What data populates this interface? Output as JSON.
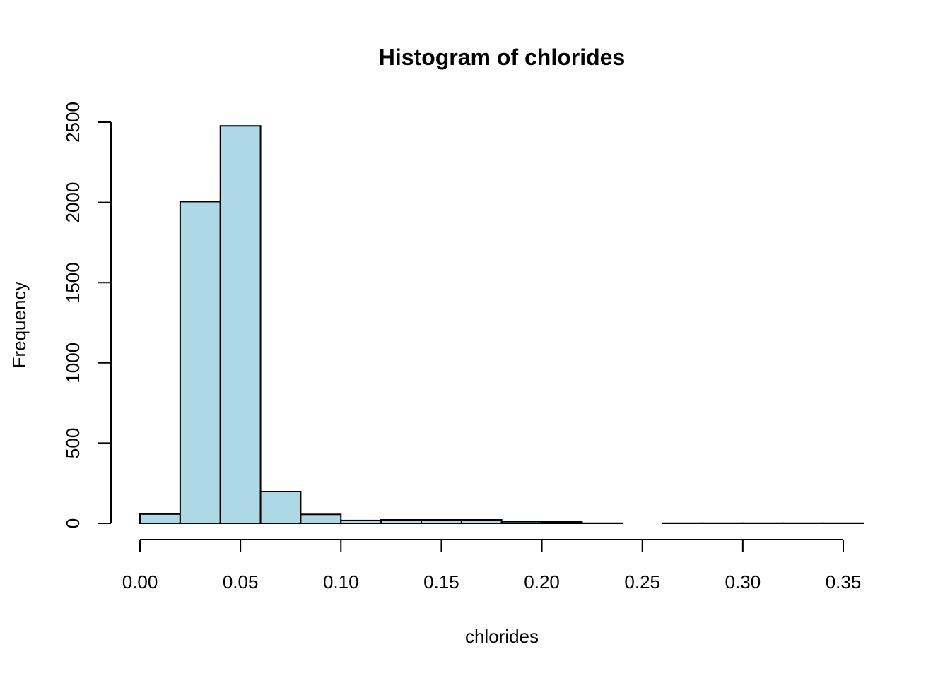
{
  "chart_data": {
    "type": "bar",
    "title": "Histogram of chlorides",
    "xlabel": "chlorides",
    "ylabel": "Frequency",
    "bar_color": "#add8e6",
    "edge_color": "#000000",
    "bins": [
      {
        "start": 0.0,
        "end": 0.02,
        "count": 58
      },
      {
        "start": 0.02,
        "end": 0.04,
        "count": 2005
      },
      {
        "start": 0.04,
        "end": 0.06,
        "count": 2477
      },
      {
        "start": 0.06,
        "end": 0.08,
        "count": 198
      },
      {
        "start": 0.08,
        "end": 0.1,
        "count": 56
      },
      {
        "start": 0.1,
        "end": 0.12,
        "count": 18
      },
      {
        "start": 0.12,
        "end": 0.14,
        "count": 22
      },
      {
        "start": 0.14,
        "end": 0.16,
        "count": 22
      },
      {
        "start": 0.16,
        "end": 0.18,
        "count": 22
      },
      {
        "start": 0.18,
        "end": 0.2,
        "count": 10
      },
      {
        "start": 0.2,
        "end": 0.22,
        "count": 9
      },
      {
        "start": 0.22,
        "end": 0.24,
        "count": 1
      },
      {
        "start": 0.24,
        "end": 0.26,
        "count": 0
      },
      {
        "start": 0.26,
        "end": 0.28,
        "count": 1
      },
      {
        "start": 0.28,
        "end": 0.3,
        "count": 1
      },
      {
        "start": 0.3,
        "end": 0.32,
        "count": 1
      },
      {
        "start": 0.32,
        "end": 0.34,
        "count": 1
      },
      {
        "start": 0.34,
        "end": 0.36,
        "count": 1
      }
    ],
    "xlim": [
      0.0,
      0.36
    ],
    "ylim": [
      0,
      2500
    ],
    "x_ticks": [
      0.0,
      0.05,
      0.1,
      0.15,
      0.2,
      0.25,
      0.3,
      0.35
    ],
    "x_tick_labels": [
      "0.00",
      "0.05",
      "0.10",
      "0.15",
      "0.20",
      "0.25",
      "0.30",
      "0.35"
    ],
    "y_ticks": [
      0,
      500,
      1000,
      1500,
      2000,
      2500
    ],
    "y_tick_labels": [
      "0",
      "500",
      "1000",
      "1500",
      "2000",
      "2500"
    ],
    "grid": false,
    "legend": "none"
  }
}
